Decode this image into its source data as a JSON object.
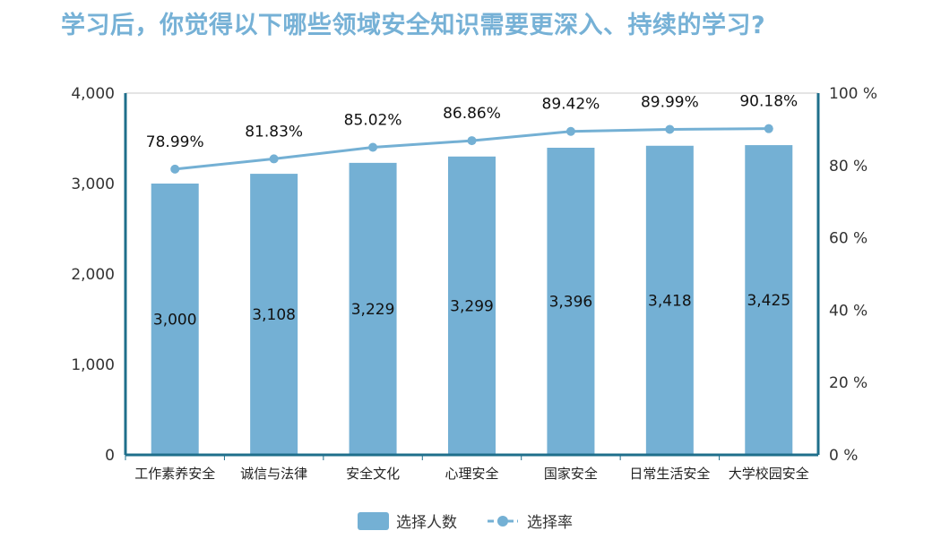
{
  "title": "学习后，你觉得以下哪些领域安全知识需要更深入、持续的学习?",
  "chart_data": {
    "type": "bar+line",
    "title": "学习后，你觉得以下哪些领域安全知识需要更深入、持续的学习?",
    "categories": [
      "工作素养安全",
      "诚信与法律",
      "安全文化",
      "心理安全",
      "国家安全",
      "日常生活安全",
      "大学校园安全"
    ],
    "series": [
      {
        "name": "选择人数",
        "type": "bar",
        "axis": "left",
        "values": [
          3000,
          3108,
          3229,
          3299,
          3396,
          3418,
          3425
        ],
        "labels": [
          "3,000",
          "3,108",
          "3,229",
          "3,299",
          "3,396",
          "3,418",
          "3,425"
        ]
      },
      {
        "name": "选择率",
        "type": "line",
        "axis": "right",
        "values": [
          78.99,
          81.83,
          85.02,
          86.86,
          89.42,
          89.99,
          90.18
        ],
        "labels": [
          "78.99%",
          "81.83%",
          "85.02%",
          "86.86%",
          "89.42%",
          "89.99%",
          "90.18%"
        ]
      }
    ],
    "left_axis": {
      "ylim": [
        0,
        4000
      ],
      "ticks": [
        "0",
        "1,000",
        "2,000",
        "3,000",
        "4,000"
      ]
    },
    "right_axis": {
      "ylim": [
        0,
        100
      ],
      "ticks": [
        "0 %",
        "20 %",
        "40 %",
        "60 %",
        "80 %",
        "100 %"
      ]
    },
    "legend": {
      "placement": "bottom",
      "items": [
        "选择人数",
        "选择率"
      ]
    },
    "colors": {
      "bar": "#74b0d4",
      "line": "#74b0d4",
      "axis": "#1f6f8b",
      "title": "#76b1d6"
    }
  }
}
